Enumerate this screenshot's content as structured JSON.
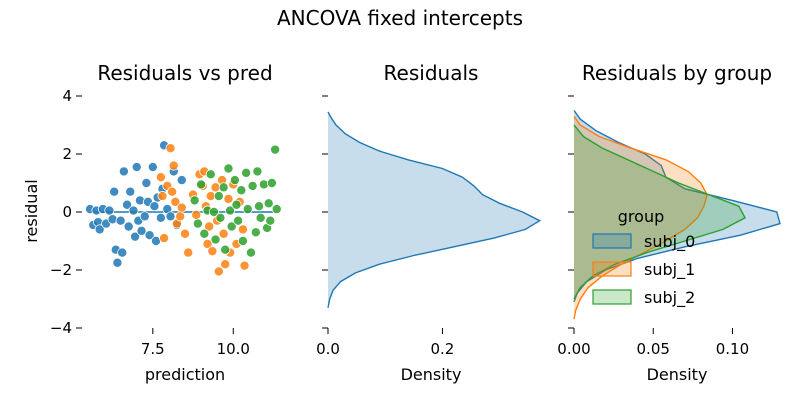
{
  "figure": {
    "title": "ANCOVA fixed intercepts"
  },
  "colors": {
    "subj_0": "#1f77b4",
    "subj_1": "#ff7f0e",
    "subj_2": "#2ca02c",
    "fill_all": "#1f77b4",
    "regression_line": "#1f77b4"
  },
  "chart_data": [
    {
      "type": "scatter",
      "title": "Residuals vs pred",
      "xlabel": "prediction",
      "ylabel": "residual",
      "xlim": [
        5.3,
        11.7
      ],
      "ylim": [
        -4,
        4
      ],
      "xticks": [
        7.5,
        10.0
      ],
      "xtick_labels": [
        "7.5",
        "10.0"
      ],
      "yticks": [
        -4,
        -2,
        0,
        2,
        4
      ],
      "ytick_labels": [
        "−4",
        "−2",
        "0",
        "2",
        "4"
      ],
      "grid": false,
      "hline": {
        "y": 0,
        "x_from": 5.6,
        "x_to": 11.3
      },
      "series": [
        {
          "name": "subj_0",
          "points": [
            [
              5.55,
              0.1
            ],
            [
              5.65,
              -0.45
            ],
            [
              5.75,
              0.05
            ],
            [
              5.8,
              -0.35
            ],
            [
              5.85,
              -0.6
            ],
            [
              5.95,
              0.1
            ],
            [
              6.05,
              -0.4
            ],
            [
              6.15,
              0.05
            ],
            [
              6.25,
              -0.25
            ],
            [
              6.3,
              0.7
            ],
            [
              6.35,
              -1.3
            ],
            [
              6.4,
              -1.75
            ],
            [
              6.5,
              -0.3
            ],
            [
              6.55,
              -1.4
            ],
            [
              6.6,
              1.4
            ],
            [
              6.7,
              0.25
            ],
            [
              6.75,
              -0.5
            ],
            [
              6.8,
              0.7
            ],
            [
              6.9,
              0.05
            ],
            [
              6.95,
              -0.85
            ],
            [
              7.0,
              1.55
            ],
            [
              7.05,
              -0.3
            ],
            [
              7.1,
              0.4
            ],
            [
              7.15,
              -0.65
            ],
            [
              7.25,
              -0.15
            ],
            [
              7.3,
              1.0
            ],
            [
              7.35,
              0.35
            ],
            [
              7.4,
              -0.8
            ],
            [
              7.5,
              1.55
            ],
            [
              7.55,
              0.2
            ],
            [
              7.6,
              -1.0
            ],
            [
              7.65,
              0.5
            ],
            [
              7.75,
              -0.2
            ],
            [
              7.8,
              0.8
            ],
            [
              7.85,
              2.3
            ],
            [
              7.95,
              0.1
            ],
            [
              8.05,
              -0.15
            ],
            [
              8.15,
              1.4
            ],
            [
              8.25,
              -0.45
            ],
            [
              8.4,
              1.1
            ]
          ]
        },
        {
          "name": "subj_1",
          "points": [
            [
              7.75,
              1.2
            ],
            [
              7.8,
              0.55
            ],
            [
              7.85,
              -0.9
            ],
            [
              7.95,
              0.9
            ],
            [
              8.05,
              2.2
            ],
            [
              8.1,
              0.7
            ],
            [
              8.15,
              1.6
            ],
            [
              8.2,
              0.35
            ],
            [
              8.25,
              -0.4
            ],
            [
              8.35,
              -0.15
            ],
            [
              8.4,
              0.15
            ],
            [
              8.5,
              -0.75
            ],
            [
              8.6,
              -1.4
            ],
            [
              8.75,
              0.6
            ],
            [
              8.85,
              -0.1
            ],
            [
              8.95,
              1.3
            ],
            [
              9.05,
              0.9
            ],
            [
              9.1,
              1.4
            ],
            [
              9.15,
              0.2
            ],
            [
              9.2,
              -1.1
            ],
            [
              9.25,
              -0.5
            ],
            [
              9.3,
              0.55
            ],
            [
              9.35,
              -1.35
            ],
            [
              9.45,
              0.85
            ],
            [
              9.5,
              -0.3
            ],
            [
              9.55,
              -2.05
            ],
            [
              9.65,
              1.1
            ],
            [
              9.7,
              -0.75
            ],
            [
              9.75,
              -1.8
            ],
            [
              9.85,
              0.45
            ],
            [
              9.9,
              -1.4
            ],
            [
              10.0,
              0.95
            ],
            [
              10.1,
              -1.1
            ],
            [
              10.2,
              0.35
            ],
            [
              10.3,
              -0.6
            ],
            [
              10.35,
              -1.85
            ]
          ]
        },
        {
          "name": "subj_2",
          "points": [
            [
              8.8,
              0.4
            ],
            [
              8.9,
              -0.4
            ],
            [
              9.0,
              0.95
            ],
            [
              9.1,
              -0.75
            ],
            [
              9.2,
              0.05
            ],
            [
              9.3,
              1.3
            ],
            [
              9.4,
              0.0
            ],
            [
              9.45,
              -0.95
            ],
            [
              9.55,
              0.55
            ],
            [
              9.6,
              -0.2
            ],
            [
              9.7,
              0.85
            ],
            [
              9.75,
              -1.3
            ],
            [
              9.85,
              1.5
            ],
            [
              9.9,
              0.05
            ],
            [
              9.95,
              -0.5
            ],
            [
              10.05,
              1.1
            ],
            [
              10.1,
              0.25
            ],
            [
              10.15,
              -0.3
            ],
            [
              10.25,
              0.75
            ],
            [
              10.3,
              -1.0
            ],
            [
              10.4,
              1.35
            ],
            [
              10.45,
              0.1
            ],
            [
              10.55,
              -1.4
            ],
            [
              10.6,
              0.9
            ],
            [
              10.7,
              -0.7
            ],
            [
              10.75,
              1.4
            ],
            [
              10.8,
              0.2
            ],
            [
              10.85,
              -0.2
            ],
            [
              10.95,
              0.95
            ],
            [
              11.05,
              -0.55
            ],
            [
              11.1,
              0.3
            ],
            [
              11.15,
              -0.3
            ],
            [
              11.2,
              1.0
            ],
            [
              11.3,
              2.15
            ],
            [
              11.35,
              0.1
            ]
          ]
        }
      ]
    },
    {
      "type": "area",
      "title": "Residuals",
      "xlabel": "Density",
      "xlim": [
        0,
        0.36
      ],
      "ylim": [
        -4,
        4
      ],
      "xticks": [
        0.0,
        0.2
      ],
      "xtick_labels": [
        "0.0",
        "0.2"
      ],
      "yticks": [
        -4,
        -2,
        0,
        2,
        4
      ],
      "grid": false,
      "series": [
        {
          "name": "all",
          "y": [
            3.45,
            3.3,
            3.0,
            2.7,
            2.4,
            2.1,
            1.8,
            1.5,
            1.2,
            0.9,
            0.6,
            0.3,
            0.0,
            -0.3,
            -0.6,
            -0.9,
            -1.2,
            -1.5,
            -1.8,
            -2.1,
            -2.4,
            -2.7,
            -3.0,
            -3.3
          ],
          "density": [
            0.0,
            0.004,
            0.014,
            0.03,
            0.055,
            0.09,
            0.14,
            0.2,
            0.235,
            0.255,
            0.27,
            0.3,
            0.34,
            0.37,
            0.345,
            0.29,
            0.22,
            0.15,
            0.09,
            0.048,
            0.022,
            0.009,
            0.003,
            0.0
          ]
        }
      ]
    },
    {
      "type": "area",
      "title": "Residuals by group",
      "xlabel": "Density",
      "xlim": [
        0,
        0.13
      ],
      "ylim": [
        -4,
        4
      ],
      "xticks": [
        0.0,
        0.05,
        0.1
      ],
      "xtick_labels": [
        "0.00",
        "0.05",
        "0.10"
      ],
      "yticks": [
        -4,
        -2,
        0,
        2,
        4
      ],
      "grid": false,
      "legend": {
        "title": "group",
        "placement": "center-left"
      },
      "series": [
        {
          "name": "subj_0",
          "y": [
            3.5,
            3.2,
            2.8,
            2.4,
            2.0,
            1.6,
            1.2,
            0.8,
            0.4,
            0.0,
            -0.4,
            -0.8,
            -1.2,
            -1.6,
            -2.0,
            -2.4,
            -2.8,
            -3.1
          ],
          "density": [
            0.0,
            0.004,
            0.014,
            0.028,
            0.045,
            0.055,
            0.058,
            0.07,
            0.1,
            0.128,
            0.13,
            0.105,
            0.07,
            0.04,
            0.02,
            0.008,
            0.002,
            0.0
          ]
        },
        {
          "name": "subj_1",
          "y": [
            3.3,
            3.0,
            2.6,
            2.2,
            1.8,
            1.4,
            1.0,
            0.6,
            0.2,
            -0.2,
            -0.6,
            -1.0,
            -1.4,
            -1.8,
            -2.2,
            -2.6,
            -3.0,
            -3.4,
            -3.7
          ],
          "density": [
            0.0,
            0.004,
            0.016,
            0.036,
            0.058,
            0.072,
            0.08,
            0.084,
            0.082,
            0.078,
            0.07,
            0.058,
            0.044,
            0.03,
            0.018,
            0.009,
            0.004,
            0.001,
            0.0
          ]
        },
        {
          "name": "subj_2",
          "y": [
            3.0,
            2.6,
            2.2,
            1.8,
            1.4,
            1.0,
            0.6,
            0.2,
            -0.2,
            -0.6,
            -1.0,
            -1.4,
            -1.8,
            -2.2,
            -2.6,
            -3.0
          ],
          "density": [
            0.0,
            0.006,
            0.018,
            0.034,
            0.05,
            0.066,
            0.085,
            0.104,
            0.108,
            0.094,
            0.07,
            0.046,
            0.026,
            0.012,
            0.004,
            0.0
          ]
        }
      ]
    }
  ]
}
